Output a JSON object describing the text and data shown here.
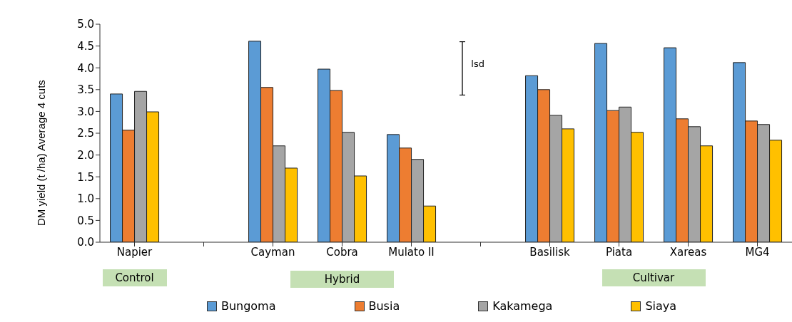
{
  "chart_data": {
    "type": "bar",
    "ylabel": "DM yield (t /ha) Average 4 cuts",
    "categories": [
      "Napier",
      null,
      "Cayman",
      "Cobra",
      "Mulato II",
      null,
      "Basilisk",
      "Piata",
      "Xareas",
      "MG4"
    ],
    "series": [
      {
        "name": "Bungoma",
        "color": "#5b9bd5",
        "values": [
          3.4,
          null,
          4.61,
          3.97,
          2.47,
          null,
          3.82,
          4.56,
          4.46,
          4.12
        ]
      },
      {
        "name": "Busia",
        "color": "#ed7d31",
        "values": [
          2.57,
          null,
          3.55,
          3.48,
          2.16,
          null,
          3.5,
          3.02,
          2.83,
          2.78
        ]
      },
      {
        "name": "Kakamega",
        "color": "#a5a5a5",
        "values": [
          3.46,
          null,
          2.21,
          2.52,
          1.9,
          null,
          2.91,
          3.1,
          2.65,
          2.7
        ]
      },
      {
        "name": "Siaya",
        "color": "#ffc000",
        "values": [
          2.99,
          null,
          1.7,
          1.52,
          0.83,
          null,
          2.6,
          2.52,
          2.21,
          2.34
        ]
      }
    ],
    "ylim": [
      0,
      5
    ],
    "yticks": [
      {
        "value": 0,
        "label": "0.0"
      },
      {
        "value": 0.5,
        "label": "0.5"
      },
      {
        "value": 1,
        "label": "1.0"
      },
      {
        "value": 1.5,
        "label": "1.5"
      },
      {
        "value": 2,
        "label": "2.0"
      },
      {
        "value": 2.5,
        "label": "2.5"
      },
      {
        "value": 3,
        "label": "3.0"
      },
      {
        "value": 3.5,
        "label": "3.5"
      },
      {
        "value": 4,
        "label": "4.0"
      },
      {
        "value": 4.5,
        "label": "4.5"
      },
      {
        "value": 5,
        "label": "5.0"
      }
    ],
    "annotations": [
      "lsd",
      "Control",
      "Hybrid",
      "Cultivar"
    ],
    "legend": "bottom"
  }
}
